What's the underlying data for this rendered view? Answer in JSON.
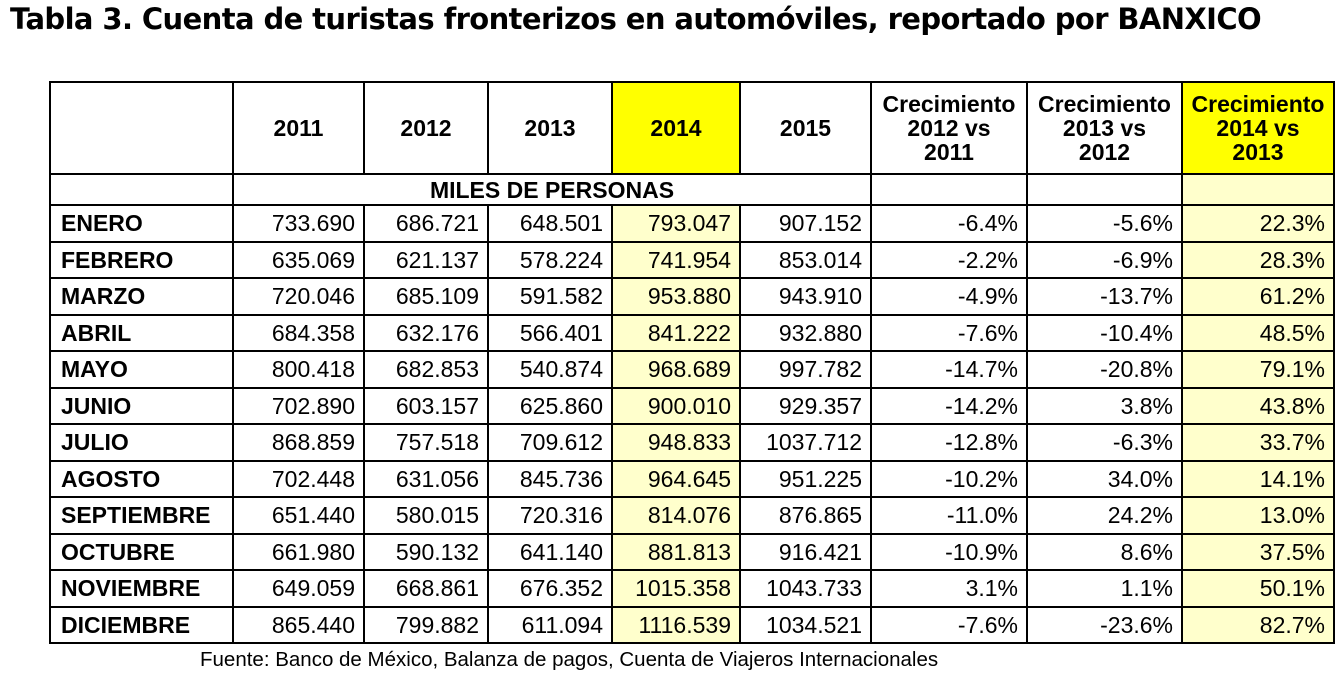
{
  "title": "Tabla 3. Cuenta de turistas fronterizos en automóviles, reportado por BANXICO",
  "headers": [
    "",
    "2011",
    "2012",
    "2013",
    "2014",
    "2015",
    "Crecimiento 2012 vs 2011",
    "Crecimiento 2013 vs 2012",
    "Crecimiento 2014 vs 2013"
  ],
  "unit_label": "MILES DE PERSONAS",
  "rows": [
    {
      "m": "ENERO",
      "v": [
        "733.690",
        "686.721",
        "648.501",
        "793.047",
        "907.152",
        "-6.4%",
        "-5.6%",
        "22.3%"
      ]
    },
    {
      "m": "FEBRERO",
      "v": [
        "635.069",
        "621.137",
        "578.224",
        "741.954",
        "853.014",
        "-2.2%",
        "-6.9%",
        "28.3%"
      ]
    },
    {
      "m": "MARZO",
      "v": [
        "720.046",
        "685.109",
        "591.582",
        "953.880",
        "943.910",
        "-4.9%",
        "-13.7%",
        "61.2%"
      ]
    },
    {
      "m": "ABRIL",
      "v": [
        "684.358",
        "632.176",
        "566.401",
        "841.222",
        "932.880",
        "-7.6%",
        "-10.4%",
        "48.5%"
      ]
    },
    {
      "m": "MAYO",
      "v": [
        "800.418",
        "682.853",
        "540.874",
        "968.689",
        "997.782",
        "-14.7%",
        "-20.8%",
        "79.1%"
      ]
    },
    {
      "m": "JUNIO",
      "v": [
        "702.890",
        "603.157",
        "625.860",
        "900.010",
        "929.357",
        "-14.2%",
        "3.8%",
        "43.8%"
      ]
    },
    {
      "m": "JULIO",
      "v": [
        "868.859",
        "757.518",
        "709.612",
        "948.833",
        "1037.712",
        "-12.8%",
        "-6.3%",
        "33.7%"
      ]
    },
    {
      "m": "AGOSTO",
      "v": [
        "702.448",
        "631.056",
        "845.736",
        "964.645",
        "951.225",
        "-10.2%",
        "34.0%",
        "14.1%"
      ]
    },
    {
      "m": "SEPTIEMBRE",
      "v": [
        "651.440",
        "580.015",
        "720.316",
        "814.076",
        "876.865",
        "-11.0%",
        "24.2%",
        "13.0%"
      ]
    },
    {
      "m": "OCTUBRE",
      "v": [
        "661.980",
        "590.132",
        "641.140",
        "881.813",
        "916.421",
        "-10.9%",
        "8.6%",
        "37.5%"
      ]
    },
    {
      "m": "NOVIEMBRE",
      "v": [
        "649.059",
        "668.861",
        "676.352",
        "1015.358",
        "1043.733",
        "3.1%",
        "1.1%",
        "50.1%"
      ]
    },
    {
      "m": "DICIEMBRE",
      "v": [
        "865.440",
        "799.882",
        "611.094",
        "1116.539",
        "1034.521",
        "-7.6%",
        "-23.6%",
        "82.7%"
      ]
    }
  ],
  "source": "Fuente: Banco de México, Balanza de pagos, Cuenta de Viajeros Internacionales",
  "highlight_color": "#ffff00",
  "highlight_light_color": "#ffffcc"
}
